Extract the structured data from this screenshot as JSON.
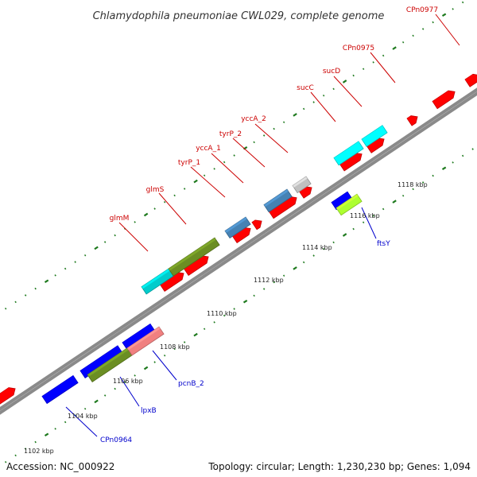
{
  "title": "Chlamydophila pneumoniae CWL029, complete genome",
  "footer": {
    "accession": "Accession: NC_000922",
    "summary": "Topology: circular; Length: 1,230,230 bp; Genes: 1,094"
  },
  "colors": {
    "background": "#ffffff",
    "backbone": "#8a8a8a",
    "tick": "#1e7a1e",
    "label_forward": "#cc0000",
    "label_reverse": "#0000cc"
  },
  "ruler_labels": [
    "1102 kbp",
    "1104 kbp",
    "1106 kbp",
    "1108 kbp",
    "1110 kbp",
    "1112 kbp",
    "1114 kbp",
    "1116 kbp",
    "1118 kbp"
  ],
  "gene_labels_forward": [
    "glmM",
    "glmS",
    "tyrP_1",
    "yccA_1",
    "tyrP_2",
    "yccA_2",
    "sucC",
    "sucD",
    "CPn0975",
    "CPn0977"
  ],
  "gene_labels_reverse": [
    "CPn0964",
    "lpxB",
    "pcnB_2",
    "ftsY"
  ],
  "features": [
    {
      "track": "forward_outer",
      "from": -10,
      "to": 16,
      "color": "#ff0000",
      "kind": "cds"
    },
    {
      "track": "forward_inner",
      "from": 201,
      "to": 228,
      "color": "#ff0000",
      "kind": "cds"
    },
    {
      "track": "forward_inner",
      "from": 231,
      "to": 259,
      "color": "#ff0000",
      "kind": "cds"
    },
    {
      "track": "forward_inner",
      "from": 292,
      "to": 312,
      "color": "#ff0000",
      "kind": "cds"
    },
    {
      "track": "forward_inner",
      "from": 317,
      "to": 326,
      "color": "#ff0000",
      "kind": "cds"
    },
    {
      "track": "forward_inner",
      "from": 338,
      "to": 370,
      "color": "#ff0000",
      "kind": "cds"
    },
    {
      "track": "forward_inner",
      "from": 376,
      "to": 389,
      "color": "#ff0000",
      "kind": "cds"
    },
    {
      "track": "forward_inner",
      "from": 427,
      "to": 452,
      "color": "#ff0000",
      "kind": "cds"
    },
    {
      "track": "forward_inner",
      "from": 461,
      "to": 480,
      "color": "#ff0000",
      "kind": "cds"
    },
    {
      "track": "forward_inner",
      "from": 512,
      "to": 522,
      "color": "#ff0000",
      "kind": "cds"
    },
    {
      "track": "forward_inner",
      "from": 544,
      "to": 569,
      "color": "#ff0000",
      "kind": "cds"
    },
    {
      "track": "forward_inner",
      "from": 585,
      "to": 600,
      "color": "#ff0000",
      "kind": "cds"
    },
    {
      "track": "forward_gene",
      "from": 178,
      "to": 212,
      "color": "#00cccc",
      "kind": "gene",
      "label": "glmM"
    },
    {
      "track": "forward_gene",
      "from": 212,
      "to": 270,
      "color": "#6b8e23",
      "kind": "gene",
      "label": "glmS"
    },
    {
      "track": "forward_gene",
      "from": 283,
      "to": 309,
      "color": "#4682b4",
      "kind": "gene",
      "label": "tyrP_1"
    },
    {
      "track": "forward_gene",
      "from": 332,
      "to": 361,
      "color": "#4682b4",
      "kind": "gene",
      "label": "tyrP_2"
    },
    {
      "track": "forward_gene",
      "from": 368,
      "to": 385,
      "color": "#c0c0c0",
      "kind": "gene",
      "label": "yccA_2"
    },
    {
      "track": "forward_gene",
      "from": 420,
      "to": 451,
      "color": "#00ffff",
      "kind": "gene",
      "label": "sucC"
    },
    {
      "track": "forward_gene",
      "from": 455,
      "to": 481,
      "color": "#00ffff",
      "kind": "gene",
      "label": "sucD"
    },
    {
      "track": "reverse_inner",
      "from": 53,
      "to": 92,
      "color": "#0000ff",
      "kind": "cds"
    },
    {
      "track": "reverse_inner",
      "from": 101,
      "to": 148,
      "color": "#0000ff",
      "kind": "cds"
    },
    {
      "track": "reverse_inner",
      "from": 154,
      "to": 189,
      "color": "#0000ff",
      "kind": "cds"
    },
    {
      "track": "reverse_inner",
      "from": 417,
      "to": 437,
      "color": "#0000ff",
      "kind": "cds"
    },
    {
      "track": "reverse_gene",
      "from": 110,
      "to": 160,
      "color": "#6b8e23",
      "kind": "gene",
      "label": "lpxB"
    },
    {
      "track": "reverse_gene",
      "from": 160,
      "to": 200,
      "color": "#f08080",
      "kind": "gene",
      "label": "pcnB_2"
    },
    {
      "track": "reverse_gene",
      "from": 423,
      "to": 449,
      "color": "#adff2f",
      "kind": "gene",
      "label": "ftsY"
    }
  ]
}
